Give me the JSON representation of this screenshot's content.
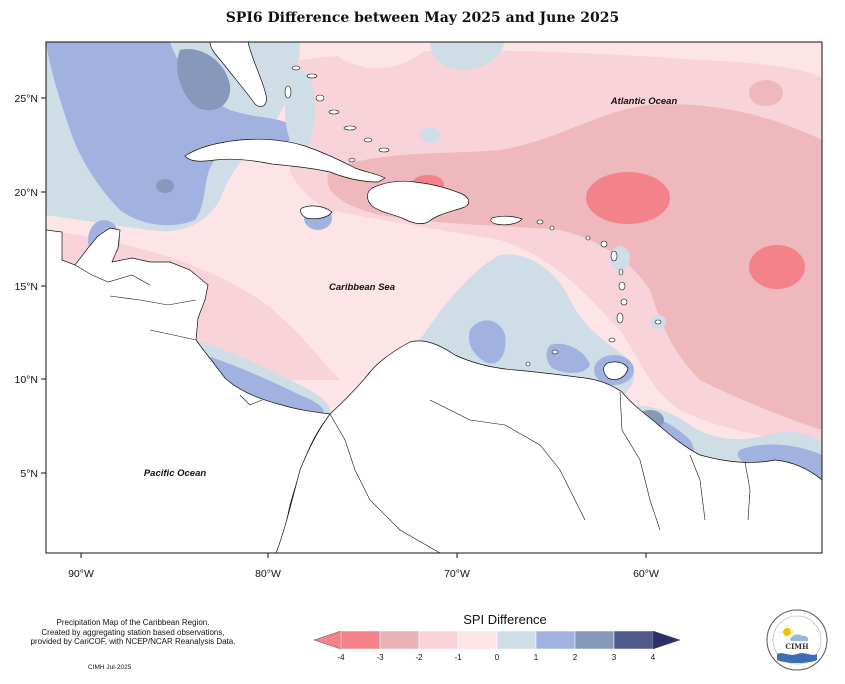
{
  "title": "SPI6 Difference between May 2025 and June 2025",
  "ocean_labels": {
    "atlantic": "Atlantic Ocean",
    "caribbean": "Caribbean Sea",
    "pacific": "Pacific Ocean"
  },
  "axes": {
    "lat_ticks": [
      "25°N",
      "20°N",
      "15°N",
      "10°N",
      "5°N"
    ],
    "lon_ticks": [
      "90°W",
      "80°W",
      "70°W",
      "60°W"
    ]
  },
  "legend": {
    "title": "SPI Difference",
    "tick_labels": [
      "-4",
      "-3",
      "-2",
      "-1",
      "0",
      "1",
      "2",
      "3",
      "4"
    ],
    "colors": [
      "#f4828a",
      "#e8b2b7",
      "#f8d3d9",
      "#fde4e7",
      "#cfdde6",
      "#a2b2e0",
      "#8799ba",
      "#515a8a"
    ],
    "under_color": "#f4828a",
    "over_color": "#2b2f6e"
  },
  "credits": {
    "lines": [
      "Precipitation Map of the Caribbean Region.",
      "Created by aggregating station based observations,",
      "provided by CariCOF, with NCEP/NCAR Reanalysis Data."
    ],
    "date": "CIMH Jul-2025"
  },
  "logo": {
    "name": "CIMH"
  }
}
